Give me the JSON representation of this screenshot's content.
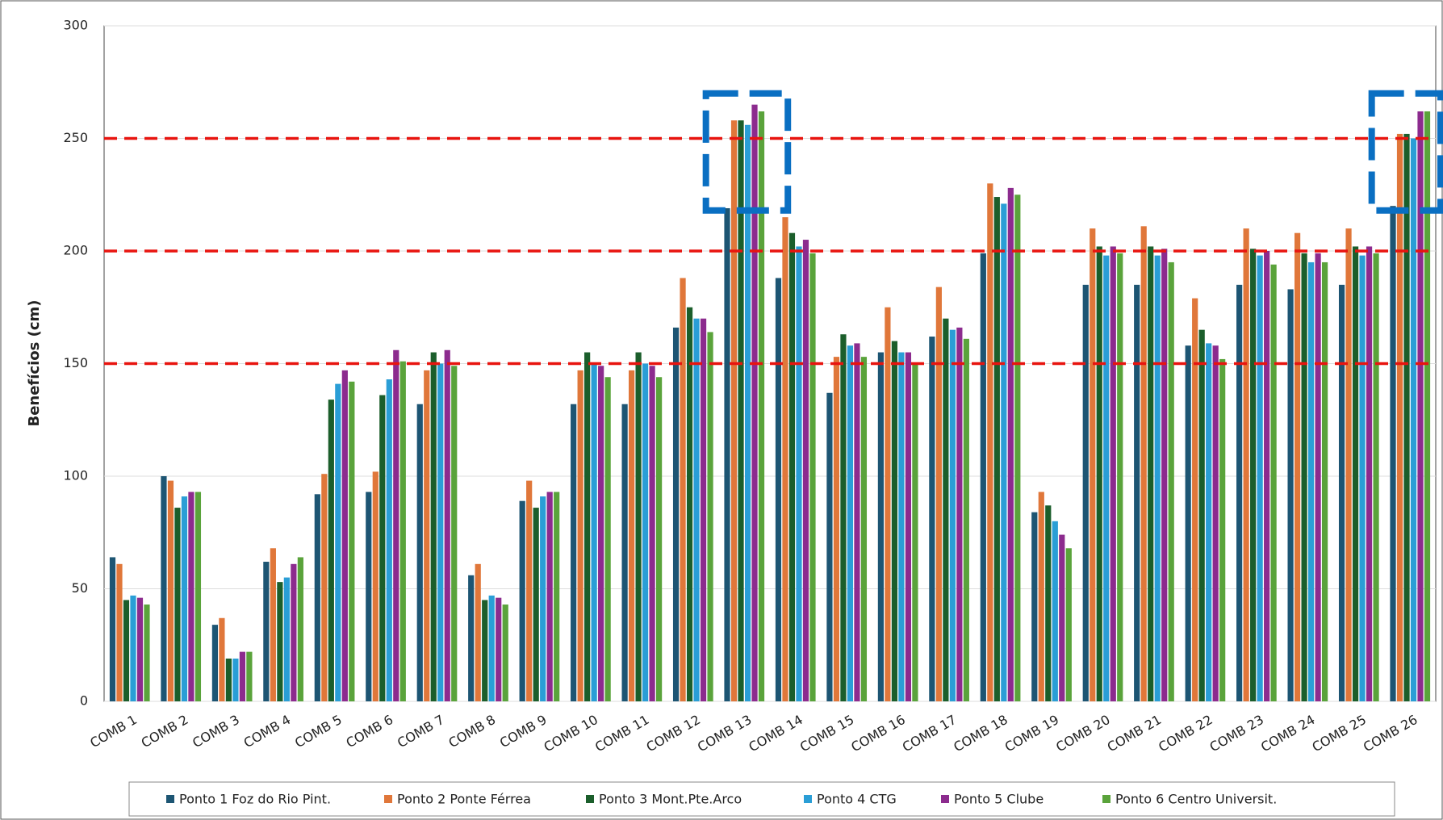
{
  "chart_data": {
    "type": "bar",
    "y_label": "Benefícios (cm)",
    "categories": [
      "COMB 1",
      "COMB 2",
      "COMB 3",
      "COMB 4",
      "COMB 5",
      "COMB 6",
      "COMB 7",
      "COMB 8",
      "COMB 9",
      "COMB 10",
      "COMB 11",
      "COMB 12",
      "COMB 13",
      "COMB 14",
      "COMB 15",
      "COMB 16",
      "COMB 17",
      "COMB 18",
      "COMB 19",
      "COMB 20",
      "COMB 21",
      "COMB 22",
      "COMB 23",
      "COMB 24",
      "COMB 25",
      "COMB 26"
    ],
    "series": [
      {
        "name": "Ponto 1 Foz do Rio Pint.",
        "color": "#1d5573",
        "values": [
          64,
          100,
          34,
          62,
          92,
          93,
          132,
          56,
          89,
          132,
          132,
          166,
          219,
          188,
          137,
          155,
          162,
          199,
          84,
          185,
          185,
          158,
          185,
          183,
          185,
          220
        ]
      },
      {
        "name": "Ponto 2 Ponte Férrea",
        "color": "#e0773a",
        "values": [
          61,
          98,
          37,
          68,
          101,
          102,
          147,
          61,
          98,
          147,
          147,
          188,
          258,
          215,
          153,
          175,
          184,
          230,
          93,
          210,
          211,
          179,
          210,
          208,
          210,
          252
        ]
      },
      {
        "name": "Ponto 3 Mont.Pte.Arco",
        "color": "#1b5e2b",
        "values": [
          45,
          86,
          19,
          53,
          134,
          136,
          155,
          45,
          86,
          155,
          155,
          175,
          258,
          208,
          163,
          160,
          170,
          224,
          87,
          202,
          202,
          165,
          201,
          199,
          202,
          252
        ]
      },
      {
        "name": "Ponto 4 CTG",
        "color": "#2a9ed6",
        "values": [
          47,
          91,
          19,
          55,
          141,
          143,
          150,
          47,
          91,
          150,
          150,
          170,
          256,
          202,
          158,
          155,
          165,
          221,
          80,
          198,
          198,
          159,
          198,
          195,
          198,
          250
        ]
      },
      {
        "name": "Ponto 5 Clube",
        "color": "#8c2b8e",
        "values": [
          46,
          93,
          22,
          61,
          147,
          156,
          156,
          46,
          93,
          149,
          149,
          170,
          265,
          205,
          159,
          155,
          166,
          228,
          74,
          202,
          201,
          158,
          200,
          199,
          202,
          262
        ]
      },
      {
        "name": "Ponto 6 Centro Universit.",
        "color": "#5aa33b",
        "values": [
          43,
          93,
          22,
          64,
          142,
          151,
          149,
          43,
          93,
          144,
          144,
          164,
          262,
          199,
          153,
          150,
          161,
          225,
          68,
          199,
          195,
          152,
          194,
          195,
          199,
          262
        ]
      }
    ],
    "ylim": [
      0,
      300
    ],
    "yticks": [
      0,
      50,
      100,
      150,
      200,
      250,
      300
    ],
    "grid": true,
    "reference_lines": [
      150,
      200,
      250
    ],
    "reference_color": "#e8140f",
    "highlight": [
      12,
      25
    ],
    "highlight_color": "#0a6fc2"
  }
}
